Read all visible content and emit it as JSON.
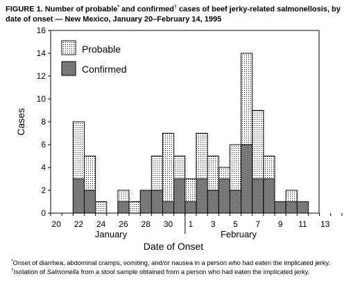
{
  "figure": {
    "label": "FIGURE 1.",
    "title_parts": [
      "Number of probable",
      "*",
      " and confirmed",
      "†",
      " cases of beef jerky-related salmonellosis, by date of onset — New Mexico, January 20–February 14, 1995"
    ]
  },
  "chart_data": {
    "type": "bar",
    "stacked": true,
    "ylabel": "Cases",
    "xlabel": "Date of Onset",
    "ylim": [
      0,
      16
    ],
    "yticks": [
      0,
      2,
      4,
      6,
      8,
      10,
      12,
      14,
      16
    ],
    "x_tick_labels": [
      "20",
      "22",
      "24",
      "26",
      "28",
      "30",
      "1",
      "3",
      "5",
      "7",
      "9",
      "11",
      "13"
    ],
    "month_labels": [
      "January",
      "February"
    ],
    "categories": [
      "Jan 20",
      "Jan 21",
      "Jan 22",
      "Jan 23",
      "Jan 24",
      "Jan 25",
      "Jan 26",
      "Jan 27",
      "Jan 28",
      "Jan 29",
      "Jan 30",
      "Jan 31",
      "Feb 1",
      "Feb 2",
      "Feb 3",
      "Feb 4",
      "Feb 5",
      "Feb 6",
      "Feb 7",
      "Feb 8",
      "Feb 9",
      "Feb 10",
      "Feb 11",
      "Feb 12",
      "Feb 13",
      "Feb 14"
    ],
    "series": [
      {
        "name": "Confirmed",
        "values": [
          0,
          0,
          3,
          2,
          0,
          0,
          1,
          0,
          2,
          2,
          1,
          3,
          1,
          3,
          2,
          3,
          2,
          6,
          3,
          3,
          1,
          1,
          1,
          0,
          0,
          0
        ]
      },
      {
        "name": "Probable",
        "values": [
          0,
          0,
          5,
          3,
          1,
          0,
          1,
          1,
          0,
          3,
          6,
          2,
          2,
          4,
          3,
          1,
          4,
          8,
          6,
          2,
          0,
          1,
          0,
          0,
          0,
          0
        ]
      }
    ],
    "legend": {
      "position": "top-left",
      "entries": [
        "Probable",
        "Confirmed"
      ]
    },
    "grid": false,
    "colors": {
      "probable": "#ffffff",
      "confirmed": "#8c8c8c",
      "stroke": "#000000"
    }
  },
  "footnotes": [
    {
      "mark": "*",
      "text": "Onset of diarrhea, abdominal cramps, vomiting, and/or nausea in a person who had eaten the implicated jerky."
    },
    {
      "mark": "†",
      "parts": [
        "Isolation of ",
        "Salmonella",
        " from a stool sample obtained from a person who had eaten the implicated jerky."
      ]
    }
  ]
}
